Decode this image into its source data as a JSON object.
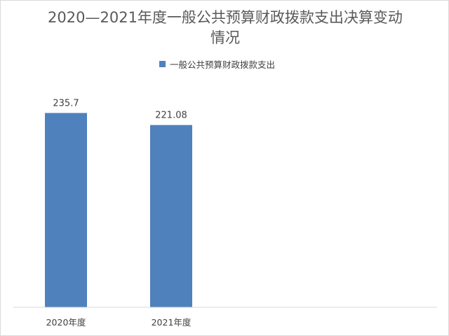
{
  "chart_data": {
    "type": "bar",
    "title": "2020—2021年度一般公共预算财政拨款支出决算变动情况",
    "categories": [
      "2020年度",
      "2021年度"
    ],
    "series": [
      {
        "name": "一般公共预算财政拨款支出",
        "values": [
          235.7,
          221.08
        ],
        "labels": [
          "235.7",
          "221.08"
        ]
      }
    ],
    "ylim": [
      0,
      270
    ],
    "grid": false,
    "legend": "top",
    "colors": {
      "bar": "#4f81bd",
      "axis": "#d9d9d9"
    }
  }
}
